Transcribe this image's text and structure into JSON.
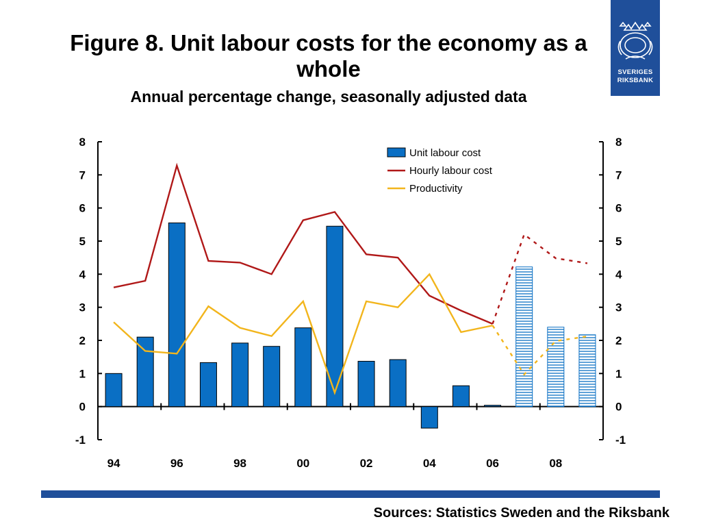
{
  "header": {
    "title": "Figure 8. Unit labour costs for the economy as a whole",
    "subtitle": "Annual percentage change, seasonally adjusted data"
  },
  "logo": {
    "line1": "SVERIGES",
    "line2": "RIKSBANK",
    "color": "#1f4f9a"
  },
  "footer": {
    "sources": "Sources: Statistics Sweden and the Riksbank"
  },
  "chart_data": {
    "type": "bar",
    "title": "Figure 8. Unit labour costs for the economy as a whole",
    "subtitle": "Annual percentage change, seasonally adjusted data",
    "x": [
      1994,
      1995,
      1996,
      1997,
      1998,
      1999,
      2000,
      2001,
      2002,
      2003,
      2004,
      2005,
      2006,
      2007,
      2008,
      2009
    ],
    "x_tick_labels": [
      "94",
      "96",
      "98",
      "00",
      "02",
      "04",
      "06",
      "08"
    ],
    "y_ticks": [
      -1,
      0,
      1,
      2,
      3,
      4,
      5,
      6,
      7,
      8
    ],
    "ylim": [
      -1,
      8
    ],
    "dual_axis_same_scale": true,
    "forecast_from": 2007,
    "legend_position": "top-right",
    "series": [
      {
        "name": "Unit labour cost",
        "type": "bar",
        "color": "#0a6fc4",
        "values": [
          1.0,
          2.1,
          5.55,
          1.33,
          1.92,
          1.82,
          2.38,
          5.45,
          1.37,
          1.42,
          -0.65,
          0.63,
          0.04,
          4.22,
          2.4,
          2.17
        ]
      },
      {
        "name": "Hourly labour cost",
        "type": "line",
        "color": "#b01818",
        "values": [
          3.6,
          3.8,
          7.28,
          4.4,
          4.35,
          4.0,
          5.63,
          5.88,
          4.6,
          4.5,
          3.35,
          2.9,
          2.5,
          5.2,
          4.48,
          4.33
        ]
      },
      {
        "name": "Productivity",
        "type": "line",
        "color": "#f2b51c",
        "values": [
          2.55,
          1.68,
          1.6,
          3.03,
          2.38,
          2.13,
          3.18,
          0.42,
          3.18,
          3.0,
          4.0,
          2.25,
          2.45,
          0.97,
          1.98,
          2.12
        ]
      }
    ]
  }
}
